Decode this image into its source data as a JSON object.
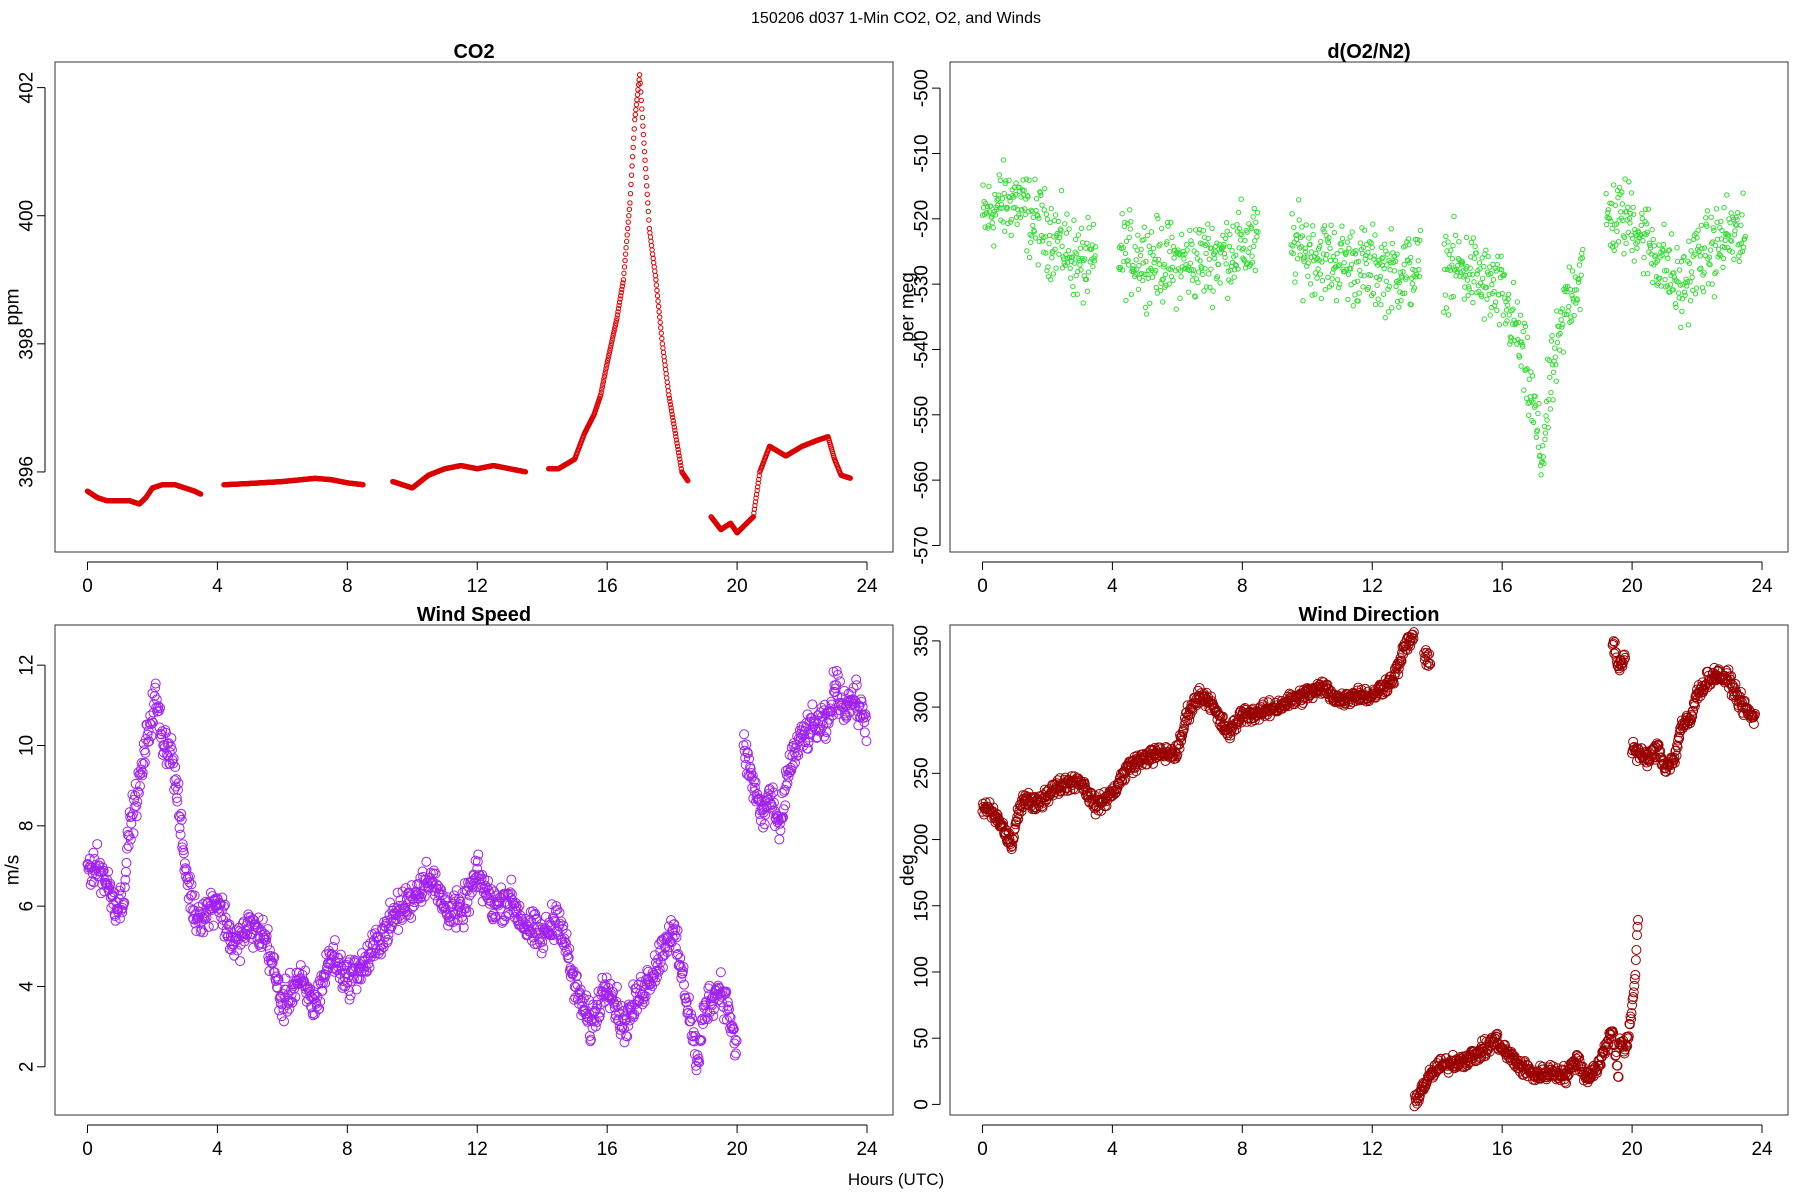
{
  "figure": {
    "suptitle": "150206   d037   1-Min CO2, O2, and Winds",
    "xlabel": "Hours (UTC)"
  },
  "chart_data": [
    {
      "type": "scatter",
      "title": "CO2",
      "xlabel": "",
      "ylabel": "ppm",
      "xlim": [
        -1,
        24.8
      ],
      "ylim": [
        394.75,
        402.4
      ],
      "xticks": [
        0,
        4,
        8,
        12,
        16,
        20,
        24
      ],
      "yticks": [
        396,
        398,
        400,
        402
      ],
      "color": "#dd0000",
      "marker_size": 2.2,
      "segments": [
        {
          "x": [
            0.0,
            0.3,
            0.6,
            1.0,
            1.3,
            1.6,
            1.8,
            2.0,
            2.3,
            2.7,
            3.0,
            3.3,
            3.5
          ],
          "y": [
            395.7,
            395.6,
            395.55,
            395.55,
            395.55,
            395.5,
            395.6,
            395.75,
            395.8,
            395.8,
            395.75,
            395.7,
            395.65
          ]
        },
        {
          "x": [
            4.2,
            5.0,
            6.0,
            7.0,
            7.5,
            8.0,
            8.5
          ],
          "y": [
            395.8,
            395.82,
            395.85,
            395.9,
            395.88,
            395.83,
            395.8
          ]
        },
        {
          "x": [
            9.4,
            9.7,
            10.0,
            10.5,
            11.0,
            11.5,
            12.0,
            12.5,
            13.0,
            13.5
          ],
          "y": [
            395.85,
            395.8,
            395.75,
            395.95,
            396.05,
            396.1,
            396.05,
            396.1,
            396.05,
            396.0
          ]
        },
        {
          "x": [
            14.2,
            14.5,
            15.0,
            15.3,
            15.6,
            15.8,
            16.0,
            16.3,
            16.5,
            16.7,
            16.85,
            17.0,
            17.15,
            17.3,
            17.5,
            17.7,
            17.9,
            18.1,
            18.3,
            18.5
          ],
          "y": [
            396.05,
            396.05,
            396.2,
            396.6,
            396.9,
            397.2,
            397.7,
            398.4,
            399.0,
            400.2,
            401.5,
            402.2,
            401.0,
            399.8,
            399.0,
            398.0,
            397.2,
            396.6,
            396.0,
            395.85
          ]
        },
        {
          "x": [
            19.2,
            19.5,
            19.8,
            20.0,
            20.3,
            20.5,
            20.7,
            21.0,
            21.5,
            22.0,
            22.5,
            22.8,
            23.0,
            23.2,
            23.5
          ],
          "y": [
            395.3,
            395.1,
            395.2,
            395.05,
            395.2,
            395.3,
            396.0,
            396.4,
            396.25,
            396.4,
            396.5,
            396.55,
            396.2,
            395.95,
            395.9
          ]
        }
      ]
    },
    {
      "type": "scatter",
      "title": "d(O2/N2)",
      "xlabel": "",
      "ylabel": "per meg",
      "xlim": [
        -1,
        24.8
      ],
      "ylim": [
        -571,
        -496
      ],
      "xticks": [
        0,
        4,
        8,
        12,
        16,
        20,
        24
      ],
      "yticks": [
        -500,
        -510,
        -520,
        -530,
        -540,
        -550,
        -560,
        -570
      ],
      "color": "#33dd33",
      "marker_size": 2.2,
      "noise": 6,
      "segments": [
        {
          "x": [
            0.0,
            0.5,
            1.0,
            1.5,
            2.0,
            2.5,
            3.0,
            3.5
          ],
          "y": [
            -520,
            -518,
            -517,
            -520,
            -522,
            -524,
            -527,
            -527
          ]
        },
        {
          "x": [
            4.2,
            5.0,
            6.0,
            7.0,
            8.0,
            8.5
          ],
          "y": [
            -525,
            -526,
            -527,
            -526,
            -524,
            -524
          ]
        },
        {
          "x": [
            9.5,
            10.5,
            11.5,
            12.5,
            13.5
          ],
          "y": [
            -524,
            -526,
            -527,
            -528,
            -528
          ]
        },
        {
          "x": [
            14.2,
            15.0,
            16.0,
            16.5,
            17.0,
            17.2,
            17.5,
            17.8,
            18.0,
            18.5
          ],
          "y": [
            -527,
            -528,
            -532,
            -538,
            -550,
            -557,
            -545,
            -538,
            -532,
            -528
          ]
        },
        {
          "x": [
            19.2,
            20.0,
            20.5,
            21.0,
            21.5,
            22.0,
            22.5,
            23.0,
            23.5
          ],
          "y": [
            -520,
            -520,
            -524,
            -527,
            -531,
            -526,
            -525,
            -522,
            -524
          ]
        }
      ]
    },
    {
      "type": "scatter",
      "title": "Wind Speed",
      "xlabel": "",
      "ylabel": "m/s",
      "xlim": [
        -1,
        24.8
      ],
      "ylim": [
        0.8,
        13.0
      ],
      "xticks": [
        0,
        4,
        8,
        12,
        16,
        20,
        24
      ],
      "yticks": [
        2,
        4,
        6,
        8,
        10,
        12
      ],
      "color": "#a020f0",
      "marker_size": 4.5,
      "noise": 0.45,
      "segments": [
        {
          "x": [
            0.0,
            0.3,
            0.6,
            0.9,
            1.1,
            1.3,
            1.6,
            1.9,
            2.1,
            2.3,
            2.6,
            2.8,
            3.0,
            3.3,
            3.6,
            4.0,
            4.5,
            5.0,
            5.5,
            6.0,
            6.5,
            7.0,
            7.5,
            8.0,
            8.5,
            9.0,
            9.5,
            10.0,
            10.5,
            11.0,
            11.5,
            12.0,
            12.5,
            13.0,
            13.5,
            14.0,
            14.5,
            15.0,
            15.5,
            16.0,
            16.5,
            17.0,
            17.5,
            18.0,
            18.5,
            18.8,
            19.0,
            19.5,
            19.8,
            20.0
          ],
          "y": [
            7.0,
            7.0,
            6.6,
            6.0,
            6.2,
            8.0,
            9.0,
            10.5,
            11.2,
            10.2,
            9.8,
            8.5,
            7.0,
            5.8,
            5.8,
            6.2,
            5.0,
            5.5,
            5.2,
            3.5,
            4.2,
            3.5,
            4.8,
            4.2,
            4.5,
            5.2,
            5.8,
            6.2,
            6.8,
            6.0,
            5.8,
            6.8,
            6.0,
            6.2,
            5.5,
            5.2,
            5.8,
            4.0,
            3.0,
            4.2,
            3.0,
            3.8,
            4.5,
            5.5,
            3.5,
            2.0,
            3.5,
            4.0,
            3.2,
            2.2
          ]
        },
        {
          "x": [
            20.2,
            20.5,
            20.8,
            21.0,
            21.3,
            21.6,
            22.0,
            22.4,
            22.8,
            23.0,
            23.3,
            23.6,
            24.0
          ],
          "y": [
            10.0,
            9.0,
            8.2,
            8.8,
            7.8,
            9.5,
            10.2,
            10.5,
            10.5,
            11.5,
            11.0,
            11.2,
            10.5
          ]
        }
      ]
    },
    {
      "type": "scatter",
      "title": "Wind Direction",
      "xlabel": "",
      "ylabel": "deg",
      "xlim": [
        -1,
        24.8
      ],
      "ylim": [
        -8,
        362
      ],
      "xticks": [
        0,
        4,
        8,
        12,
        16,
        20,
        24
      ],
      "yticks": [
        0,
        50,
        100,
        150,
        200,
        250,
        300,
        350
      ],
      "color": "#990000",
      "marker_size": 4.5,
      "noise": 6,
      "segments": [
        {
          "x": [
            0.0,
            0.3,
            0.6,
            0.9,
            1.1,
            1.3,
            1.6,
            2.0,
            2.5,
            3.0,
            3.5,
            4.0,
            4.5,
            5.0,
            5.5,
            6.0,
            6.3,
            6.7,
            7.0,
            7.3,
            7.6,
            8.0,
            8.5,
            9.0,
            9.5,
            10.0,
            10.5,
            11.0,
            11.5,
            12.0,
            12.3,
            12.6,
            12.8,
            13.0,
            13.3
          ],
          "y": [
            225,
            220,
            210,
            195,
            220,
            232,
            225,
            235,
            242,
            245,
            225,
            235,
            255,
            262,
            265,
            265,
            295,
            310,
            305,
            290,
            280,
            295,
            295,
            300,
            305,
            310,
            315,
            305,
            310,
            308,
            315,
            320,
            330,
            345,
            355
          ]
        },
        {
          "x": [
            13.6,
            13.8
          ],
          "y": [
            340,
            330
          ]
        },
        {
          "x": [
            13.3,
            13.6,
            14.0,
            14.5,
            15.0,
            15.5,
            15.8,
            16.0,
            16.5,
            17.0,
            17.5,
            18.0,
            18.3,
            18.6,
            19.0,
            19.2,
            19.4,
            19.6
          ],
          "y": [
            2,
            15,
            28,
            32,
            35,
            42,
            50,
            42,
            30,
            22,
            25,
            22,
            35,
            20,
            30,
            45,
            55,
            20
          ]
        },
        {
          "x": [
            19.6,
            19.8,
            19.9,
            20.0,
            20.1,
            20.2
          ],
          "y": [
            50,
            40,
            55,
            70,
            100,
            150
          ]
        },
        {
          "x": [
            19.4,
            19.6,
            19.8
          ],
          "y": [
            350,
            330,
            340
          ]
        },
        {
          "x": [
            20.0,
            20.2,
            20.5,
            20.8,
            21.0,
            21.3,
            21.5,
            21.8,
            22.0,
            22.3,
            22.6,
            23.0,
            23.3,
            23.6,
            23.8
          ],
          "y": [
            270,
            265,
            260,
            270,
            255,
            260,
            285,
            290,
            310,
            320,
            325,
            320,
            305,
            295,
            290
          ]
        }
      ]
    }
  ]
}
